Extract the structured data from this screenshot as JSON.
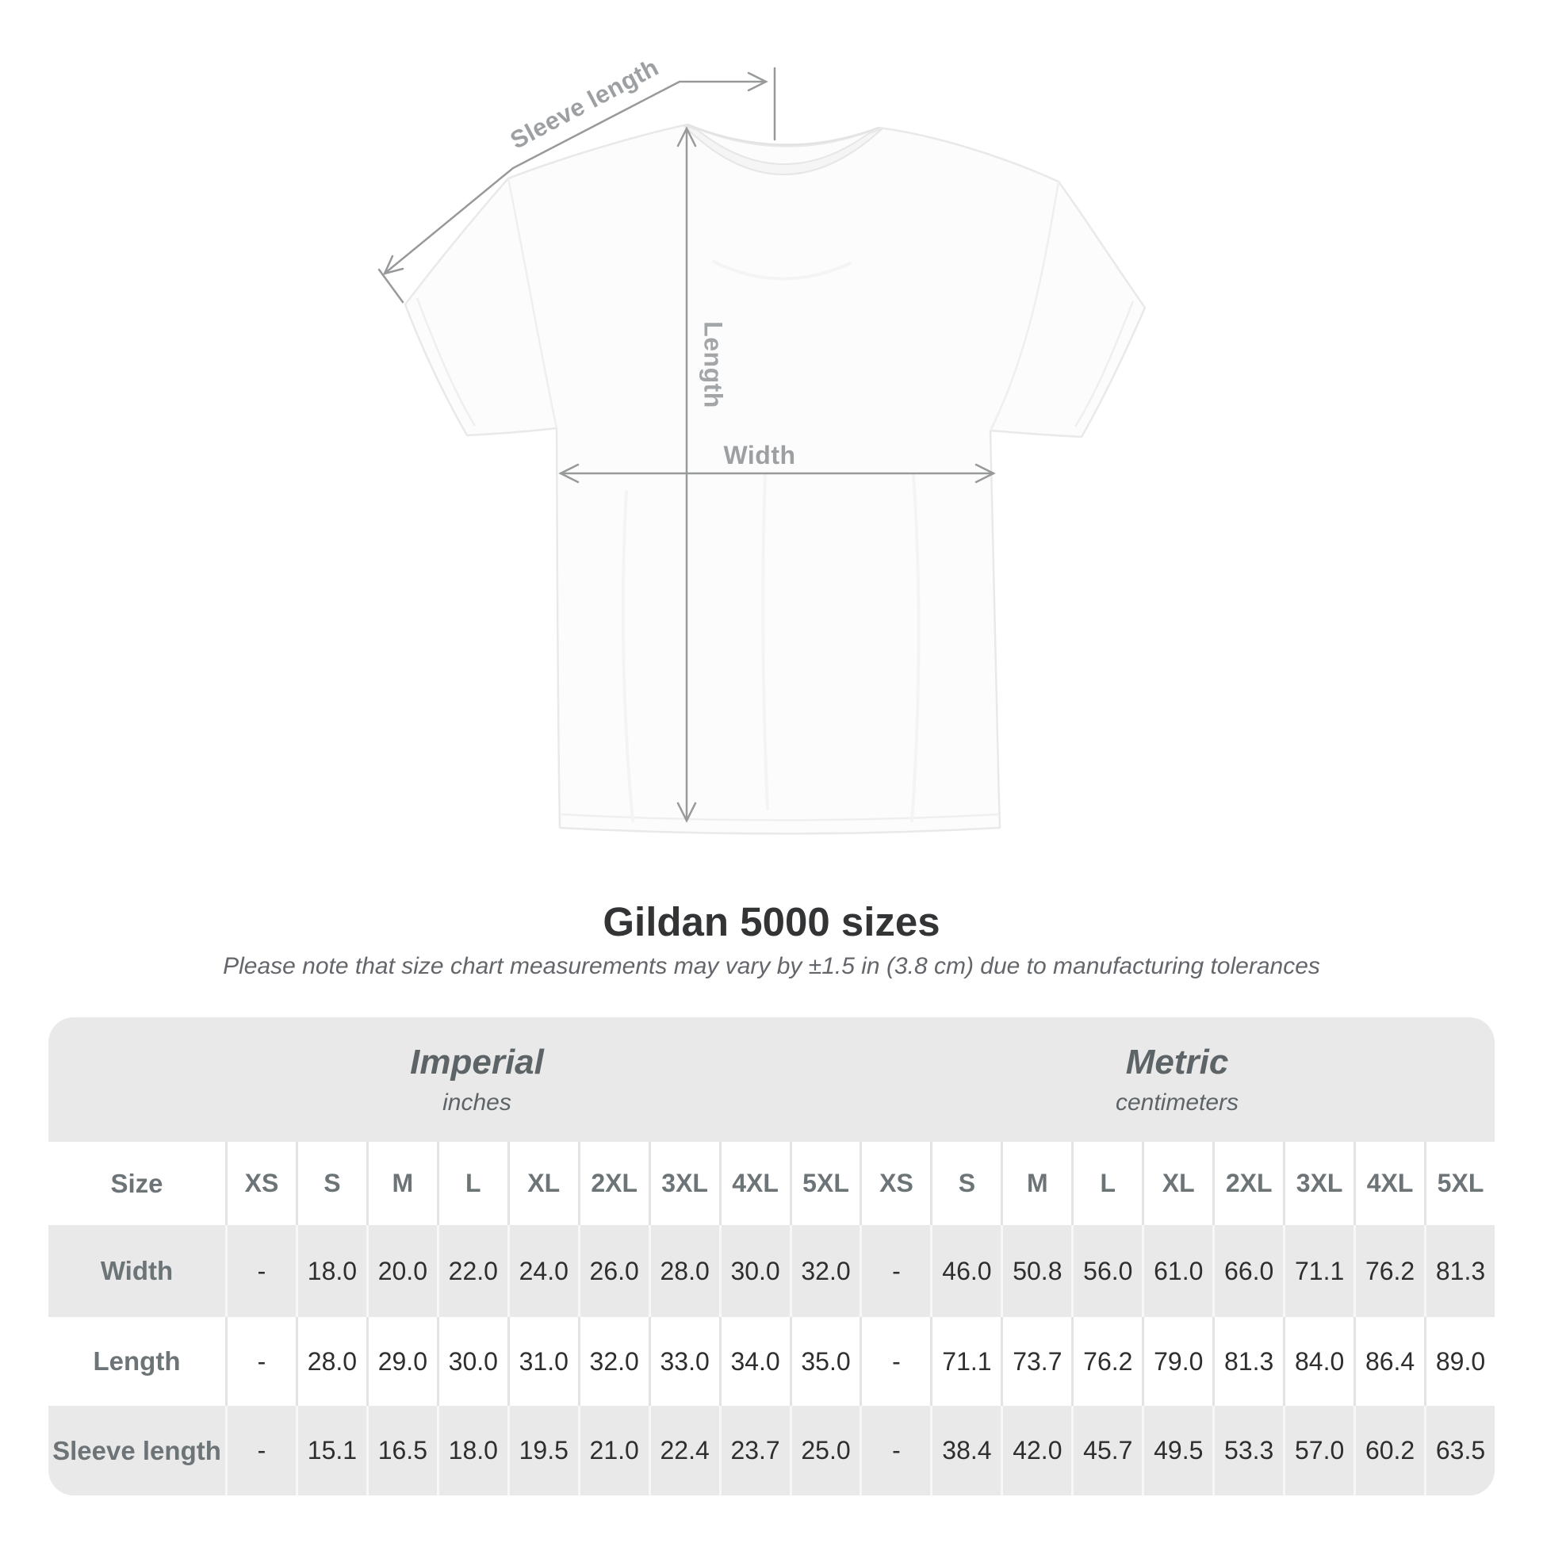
{
  "diagram": {
    "sleeve_length_label": "Sleeve length",
    "length_label": "Length",
    "width_label": "Width"
  },
  "header": {
    "title": "Gildan 5000 sizes",
    "subtitle": "Please note that size chart measurements may vary by ±1.5 in (3.8 cm) due to manufacturing tolerances"
  },
  "table": {
    "size_header": "Size",
    "unit_groups": [
      {
        "name": "Imperial",
        "unit": "inches"
      },
      {
        "name": "Metric",
        "unit": "centimeters"
      }
    ],
    "sizes": [
      "XS",
      "S",
      "M",
      "L",
      "XL",
      "2XL",
      "3XL",
      "4XL",
      "5XL"
    ],
    "rows": [
      {
        "label": "Width",
        "imperial": [
          "-",
          "18.0",
          "20.0",
          "22.0",
          "24.0",
          "26.0",
          "28.0",
          "30.0",
          "32.0"
        ],
        "metric": [
          "-",
          "46.0",
          "50.8",
          "56.0",
          "61.0",
          "66.0",
          "71.1",
          "76.2",
          "81.3"
        ]
      },
      {
        "label": "Length",
        "imperial": [
          "-",
          "28.0",
          "29.0",
          "30.0",
          "31.0",
          "32.0",
          "33.0",
          "34.0",
          "35.0"
        ],
        "metric": [
          "-",
          "71.1",
          "73.7",
          "76.2",
          "79.0",
          "81.3",
          "84.0",
          "86.4",
          "89.0"
        ]
      },
      {
        "label": "Sleeve length",
        "imperial": [
          "-",
          "15.1",
          "16.5",
          "18.0",
          "19.5",
          "21.0",
          "22.4",
          "23.7",
          "25.0"
        ],
        "metric": [
          "-",
          "38.4",
          "42.0",
          "45.7",
          "49.5",
          "53.3",
          "57.0",
          "60.2",
          "63.5"
        ]
      }
    ]
  },
  "colors": {
    "row_band_gray": "#e9e9e9",
    "label_gray": "#6d7478",
    "value_dark": "#2e2e2e",
    "dimension_line_gray": "#97999b",
    "diagram_label_gray": "#9da0a2"
  }
}
